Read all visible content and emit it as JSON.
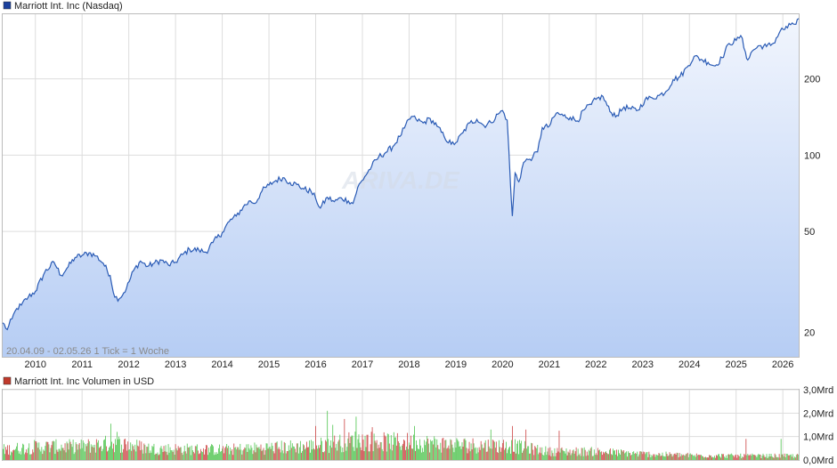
{
  "chart_data": [
    {
      "type": "area",
      "title": "Marriott Int. Inc (Nasdaq)",
      "legend_color": "#1a3f9c",
      "line_color": "#2a5bb5",
      "info_text": "20.04.09 - 02.05.26   1 Tick = 1 Woche",
      "watermark": "ARIVA.DE",
      "y_scale": "log",
      "y_ticks": [
        "20",
        "50",
        "100",
        "200"
      ],
      "x_ticks": [
        "2010",
        "2011",
        "2012",
        "2013",
        "2014",
        "2015",
        "2016",
        "2017",
        "2018",
        "2019",
        "2020",
        "2021",
        "2022",
        "2023",
        "2024",
        "2025",
        "2026"
      ],
      "x_range": [
        2009.3,
        2026.34
      ],
      "y_range": [
        16,
        360
      ],
      "series": [
        {
          "points": [
            [
              2009.3,
              21.8
            ],
            [
              2009.4,
              20.5
            ],
            [
              2009.5,
              22.6
            ],
            [
              2009.6,
              24.8
            ],
            [
              2009.7,
              25.6
            ],
            [
              2009.85,
              27.6
            ],
            [
              2010.0,
              29.0
            ],
            [
              2010.2,
              34.5
            ],
            [
              2010.4,
              37.8
            ],
            [
              2010.55,
              33.5
            ],
            [
              2010.7,
              36.2
            ],
            [
              2010.85,
              39.5
            ],
            [
              2011.0,
              40.2
            ],
            [
              2011.15,
              41.2
            ],
            [
              2011.3,
              40.0
            ],
            [
              2011.45,
              37.5
            ],
            [
              2011.6,
              33.5
            ],
            [
              2011.7,
              27.5
            ],
            [
              2011.8,
              27.2
            ],
            [
              2011.95,
              29.8
            ],
            [
              2012.1,
              35.0
            ],
            [
              2012.25,
              38.2
            ],
            [
              2012.4,
              36.4
            ],
            [
              2012.55,
              37.5
            ],
            [
              2012.7,
              38.5
            ],
            [
              2012.85,
              36.8
            ],
            [
              2013.0,
              37.8
            ],
            [
              2013.15,
              40.5
            ],
            [
              2013.3,
              42.5
            ],
            [
              2013.5,
              42.2
            ],
            [
              2013.65,
              41.4
            ],
            [
              2013.8,
              45.2
            ],
            [
              2014.0,
              49.5
            ],
            [
              2014.15,
              54.8
            ],
            [
              2014.3,
              57.5
            ],
            [
              2014.45,
              62.5
            ],
            [
              2014.6,
              66.0
            ],
            [
              2014.7,
              64.5
            ],
            [
              2014.85,
              72.2
            ],
            [
              2015.0,
              76.2
            ],
            [
              2015.15,
              79.5
            ],
            [
              2015.3,
              81.5
            ],
            [
              2015.45,
              78.0
            ],
            [
              2015.6,
              76.5
            ],
            [
              2015.75,
              73.5
            ],
            [
              2015.9,
              72.0
            ],
            [
              2016.0,
              67.5
            ],
            [
              2016.1,
              61.8
            ],
            [
              2016.25,
              68.2
            ],
            [
              2016.4,
              65.5
            ],
            [
              2016.55,
              67.8
            ],
            [
              2016.7,
              66.0
            ],
            [
              2016.8,
              64.5
            ],
            [
              2016.9,
              74.5
            ],
            [
              2017.05,
              82.2
            ],
            [
              2017.2,
              90.5
            ],
            [
              2017.35,
              98.5
            ],
            [
              2017.5,
              102.5
            ],
            [
              2017.65,
              108.0
            ],
            [
              2017.8,
              118.5
            ],
            [
              2017.9,
              128.0
            ],
            [
              2018.05,
              142.0
            ],
            [
              2018.15,
              138.5
            ],
            [
              2018.3,
              134.0
            ],
            [
              2018.45,
              139.5
            ],
            [
              2018.6,
              130.0
            ],
            [
              2018.75,
              118.5
            ],
            [
              2018.9,
              110.5
            ],
            [
              2019.0,
              112.0
            ],
            [
              2019.15,
              122.5
            ],
            [
              2019.3,
              134.0
            ],
            [
              2019.45,
              138.5
            ],
            [
              2019.6,
              131.0
            ],
            [
              2019.75,
              134.5
            ],
            [
              2019.9,
              145.0
            ],
            [
              2020.0,
              150.0
            ],
            [
              2020.1,
              137.5
            ],
            [
              2020.17,
              76.5
            ],
            [
              2020.21,
              57.5
            ],
            [
              2020.27,
              85.0
            ],
            [
              2020.35,
              78.5
            ],
            [
              2020.45,
              93.5
            ],
            [
              2020.55,
              96.0
            ],
            [
              2020.65,
              98.5
            ],
            [
              2020.75,
              103.0
            ],
            [
              2020.85,
              128.5
            ],
            [
              2021.0,
              130.0
            ],
            [
              2021.15,
              146.5
            ],
            [
              2021.3,
              143.0
            ],
            [
              2021.45,
              141.0
            ],
            [
              2021.6,
              136.5
            ],
            [
              2021.75,
              151.0
            ],
            [
              2021.9,
              158.5
            ],
            [
              2022.0,
              166.0
            ],
            [
              2022.15,
              170.5
            ],
            [
              2022.3,
              148.5
            ],
            [
              2022.45,
              143.5
            ],
            [
              2022.6,
              155.0
            ],
            [
              2022.75,
              152.0
            ],
            [
              2022.9,
              150.5
            ],
            [
              2023.05,
              165.5
            ],
            [
              2023.2,
              168.5
            ],
            [
              2023.35,
              172.0
            ],
            [
              2023.5,
              178.5
            ],
            [
              2023.65,
              198.5
            ],
            [
              2023.8,
              204.0
            ],
            [
              2023.95,
              222.5
            ],
            [
              2024.1,
              245.5
            ],
            [
              2024.25,
              239.0
            ],
            [
              2024.4,
              232.5
            ],
            [
              2024.55,
              225.0
            ],
            [
              2024.7,
              242.5
            ],
            [
              2024.85,
              276.0
            ],
            [
              2025.0,
              283.5
            ],
            [
              2025.1,
              296.5
            ],
            [
              2025.2,
              255.0
            ],
            [
              2025.25,
              237.5
            ],
            [
              2025.35,
              258.5
            ],
            [
              2025.5,
              270.5
            ],
            [
              2025.65,
              268.5
            ],
            [
              2025.8,
              276.5
            ],
            [
              2025.95,
              310.5
            ],
            [
              2026.1,
              318.0
            ],
            [
              2026.2,
              332.5
            ],
            [
              2026.28,
              328.5
            ],
            [
              2026.34,
              346.0
            ]
          ]
        }
      ]
    },
    {
      "type": "bar",
      "title": "Marriott Int. Inc Volumen in USD",
      "legend_color": "#c0392b",
      "y_ticks": [
        "0,0Mrd",
        "1,0Mrd",
        "2,0Mrd",
        "3,0Mrd"
      ],
      "y_range": [
        0,
        3.0
      ],
      "up_color": "#5cc95c",
      "down_color": "#d05050",
      "profile": [
        [
          2009.3,
          0.55
        ],
        [
          2010.0,
          0.7
        ],
        [
          2011.0,
          0.72
        ],
        [
          2011.7,
          0.9
        ],
        [
          2012.5,
          0.6
        ],
        [
          2014.0,
          0.55
        ],
        [
          2016.0,
          0.75
        ],
        [
          2016.9,
          1.05
        ],
        [
          2017.5,
          0.95
        ],
        [
          2018.0,
          0.95
        ],
        [
          2019.0,
          0.8
        ],
        [
          2020.2,
          0.75
        ],
        [
          2021.0,
          0.45
        ],
        [
          2022.0,
          0.45
        ],
        [
          2023.0,
          0.32
        ],
        [
          2024.0,
          0.25
        ],
        [
          2025.0,
          0.22
        ],
        [
          2026.34,
          0.22
        ]
      ],
      "spikes": [
        [
          2011.6,
          1.55
        ],
        [
          2011.75,
          1.2
        ],
        [
          2016.0,
          1.45
        ],
        [
          2016.25,
          2.1
        ],
        [
          2016.35,
          1.5
        ],
        [
          2016.6,
          1.75
        ],
        [
          2016.85,
          1.85
        ],
        [
          2017.2,
          1.4
        ],
        [
          2018.1,
          1.45
        ],
        [
          2019.75,
          1.3
        ],
        [
          2020.2,
          1.45
        ],
        [
          2020.5,
          1.3
        ],
        [
          2021.2,
          1.25
        ],
        [
          2025.2,
          0.9
        ],
        [
          2025.95,
          0.9
        ]
      ]
    }
  ]
}
